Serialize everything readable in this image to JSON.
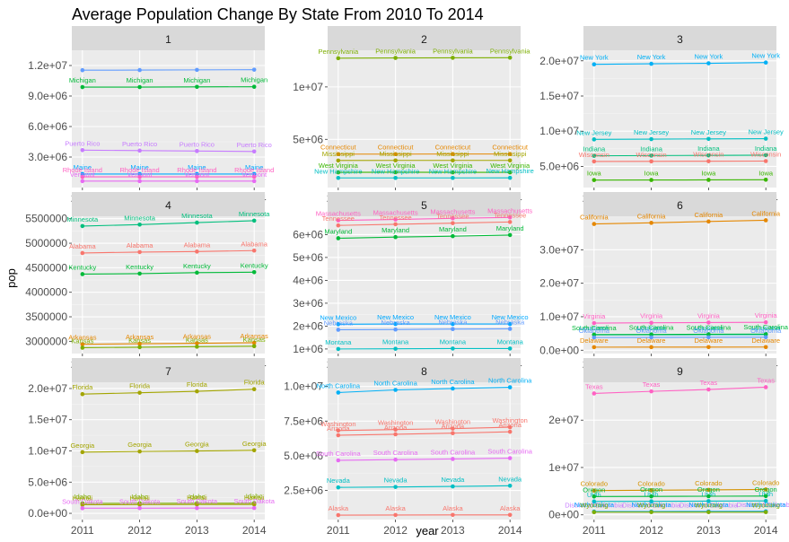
{
  "chart_data": {
    "type": "line",
    "title": "Average Population Change By State From 2010 To 2014",
    "xlabel": "year",
    "ylabel": "pop",
    "x": [
      2011,
      2012,
      2013,
      2014
    ],
    "grid": true,
    "panels": [
      {
        "facet": "1",
        "ylim": [
          0,
          13500000
        ],
        "yticks": [
          3000000,
          6000000,
          9000000,
          12000000
        ],
        "ytick_labels": [
          "3.0e+06",
          "6.0e+06",
          "9.0e+06",
          "1.2e+07"
        ],
        "series": [
          {
            "name": "",
            "color": "#619cff",
            "values": [
              11540000,
              11550000,
              11570000,
              11590000
            ]
          },
          {
            "name": "Michigan",
            "color": "#00ba38",
            "values": [
              9880000,
              9880000,
              9900000,
              9910000
            ]
          },
          {
            "name": "Puerto Rico",
            "color": "#c77cff",
            "values": [
              3680000,
              3630000,
              3590000,
              3550000
            ]
          },
          {
            "name": "Maine",
            "color": "#00a9ff",
            "values": [
              1330000,
              1330000,
              1330000,
              1330000
            ]
          },
          {
            "name": "Rhode Island",
            "color": "#ff61c3",
            "values": [
              1050000,
              1050000,
              1050000,
              1060000
            ]
          },
          {
            "name": "Vermont",
            "color": "#e76bf3",
            "values": [
              630000,
              630000,
              630000,
              630000
            ]
          }
        ]
      },
      {
        "facet": "2",
        "ylim": [
          400000,
          13500000
        ],
        "yticks": [
          5000000,
          10000000
        ],
        "ytick_labels": [
          "5e+06",
          "1e+07"
        ],
        "series": [
          {
            "name": "Pennsylvania",
            "color": "#7cae00",
            "values": [
              12740000,
              12770000,
              12780000,
              12790000
            ]
          },
          {
            "name": "Connecticut",
            "color": "#e58700",
            "values": [
              3590000,
              3590000,
              3600000,
              3600000
            ]
          },
          {
            "name": "Mississippi",
            "color": "#a3a500",
            "values": [
              2980000,
              2990000,
              2990000,
              2990000
            ]
          },
          {
            "name": "West Virginia",
            "color": "#39b600",
            "values": [
              1850000,
              1860000,
              1850000,
              1850000
            ]
          },
          {
            "name": "New Hampshire",
            "color": "#00bfc4",
            "values": [
              1320000,
              1320000,
              1320000,
              1330000
            ]
          }
        ]
      },
      {
        "facet": "3",
        "ylim": [
          2000000,
          21500000
        ],
        "yticks": [
          5000000,
          10000000,
          15000000,
          20000000
        ],
        "ytick_labels": [
          "5.0e+06",
          "1.0e+07",
          "1.5e+07",
          "2.0e+07"
        ],
        "series": [
          {
            "name": "New York",
            "color": "#00b0f6",
            "values": [
              19500000,
              19580000,
              19650000,
              19750000
            ]
          },
          {
            "name": "New Jersey",
            "color": "#00bfc4",
            "values": [
              8840000,
              8880000,
              8910000,
              8940000
            ]
          },
          {
            "name": "Indiana",
            "color": "#00bf7d",
            "values": [
              6510000,
              6540000,
              6570000,
              6600000
            ]
          },
          {
            "name": "Wisconsin",
            "color": "#f8766d",
            "values": [
              5710000,
              5720000,
              5740000,
              5760000
            ]
          },
          {
            "name": "Iowa",
            "color": "#39b600",
            "values": [
              3060000,
              3070000,
              3090000,
              3110000
            ]
          }
        ]
      },
      {
        "facet": "4",
        "ylim": [
          2750000,
          5550000
        ],
        "yticks": [
          3000000,
          3500000,
          4000000,
          4500000,
          5000000,
          5500000
        ],
        "ytick_labels": [
          "3000000",
          "3500000",
          "4000000",
          "4500000",
          "5000000",
          "5500000"
        ],
        "series": [
          {
            "name": "Minnesota",
            "color": "#00bf7d",
            "values": [
              5350000,
              5380000,
              5420000,
              5460000
            ]
          },
          {
            "name": "Alabama",
            "color": "#f8766d",
            "values": [
              4800000,
              4820000,
              4830000,
              4850000
            ]
          },
          {
            "name": "Kentucky",
            "color": "#00ba38",
            "values": [
              4370000,
              4380000,
              4400000,
              4410000
            ]
          },
          {
            "name": "Arkansas",
            "color": "#e58700",
            "values": [
              2940000,
              2950000,
              2960000,
              2970000
            ]
          },
          {
            "name": "Kansas",
            "color": "#7cae00",
            "values": [
              2870000,
              2880000,
              2890000,
              2900000
            ]
          }
        ]
      },
      {
        "facet": "5",
        "ylim": [
          800000,
          6800000
        ],
        "yticks": [
          1000000,
          2000000,
          3000000,
          4000000,
          5000000,
          6000000
        ],
        "ytick_labels": [
          "1e+06",
          "2e+06",
          "3e+06",
          "4e+06",
          "5e+06",
          "6e+06"
        ],
        "series": [
          {
            "name": "Massachusetts",
            "color": "#ff61c3",
            "values": [
              6620000,
              6660000,
              6710000,
              6750000
            ]
          },
          {
            "name": "Tennessee",
            "color": "#f8766d",
            "values": [
              6400000,
              6450000,
              6500000,
              6550000
            ]
          },
          {
            "name": "Maryland",
            "color": "#00ba38",
            "values": [
              5840000,
              5890000,
              5930000,
              5980000
            ]
          },
          {
            "name": "New Mexico",
            "color": "#00a9ff",
            "values": [
              2080000,
              2090000,
              2090000,
              2090000
            ]
          },
          {
            "name": "Nebraska",
            "color": "#619cff",
            "values": [
              1840000,
              1850000,
              1870000,
              1880000
            ]
          },
          {
            "name": "Montana",
            "color": "#00bfc4",
            "values": [
              1000000,
              1010000,
              1020000,
              1020000
            ]
          }
        ]
      },
      {
        "facet": "6",
        "ylim": [
          -1000000,
          40000000
        ],
        "yticks": [
          0,
          10000000,
          20000000,
          30000000
        ],
        "ytick_labels": [
          "0.0e+00",
          "1.0e+07",
          "2.0e+07",
          "3.0e+07"
        ],
        "series": [
          {
            "name": "California",
            "color": "#e58700",
            "values": [
              37700000,
              38040000,
              38430000,
              38800000
            ]
          },
          {
            "name": "Virginia",
            "color": "#ff61c3",
            "values": [
              8100000,
              8190000,
              8270000,
              8330000
            ]
          },
          {
            "name": "Louisiana",
            "color": "#00bfc4",
            "values": [
              4580000,
              4600000,
              4630000,
              4650000
            ]
          },
          {
            "name": "South Carolina",
            "color": "#00ba38",
            "values": [
              4670000,
              4720000,
              4770000,
              4830000
            ]
          },
          {
            "name": "Oklahoma",
            "color": "#619cff",
            "values": [
              3790000,
              3810000,
              3850000,
              3880000
            ]
          },
          {
            "name": "Delaware",
            "color": "#e58700",
            "values": [
              910000,
              920000,
              930000,
              940000
            ]
          }
        ]
      },
      {
        "facet": "7",
        "ylim": [
          -1000000,
          21000000
        ],
        "yticks": [
          0,
          5000000,
          10000000,
          15000000,
          20000000
        ],
        "ytick_labels": [
          "0.0e+00",
          "5.0e+06",
          "1.0e+07",
          "1.5e+07",
          "2.0e+07"
        ],
        "series": [
          {
            "name": "Florida",
            "color": "#a3a500",
            "values": [
              19100000,
              19320000,
              19550000,
              19890000
            ]
          },
          {
            "name": "Georgia",
            "color": "#a3a500",
            "values": [
              9810000,
              9910000,
              9990000,
              10100000
            ]
          },
          {
            "name": "Idaho",
            "color": "#7cae00",
            "values": [
              1590000,
              1600000,
              1610000,
              1630000
            ]
          },
          {
            "name": "Hawaii",
            "color": "#a3a500",
            "values": [
              1380000,
              1390000,
              1410000,
              1420000
            ]
          },
          {
            "name": "South Dakota",
            "color": "#e76bf3",
            "values": [
              820000,
              830000,
              840000,
              850000
            ]
          }
        ]
      },
      {
        "facet": "8",
        "ylim": [
          400000,
          10300000
        ],
        "yticks": [
          2500000,
          5000000,
          7500000,
          10000000
        ],
        "ytick_labels": [
          "2.5e+06",
          "5.0e+06",
          "7.5e+06",
          "1.0e+07"
        ],
        "series": [
          {
            "name": "North Carolina",
            "color": "#00b0f6",
            "values": [
              9560000,
              9750000,
              9850000,
              9940000
            ]
          },
          {
            "name": "Washington",
            "color": "#f8766d",
            "values": [
              6820000,
              6890000,
              6960000,
              7060000
            ]
          },
          {
            "name": "Arizona",
            "color": "#f8766d",
            "values": [
              6480000,
              6550000,
              6630000,
              6730000
            ]
          },
          {
            "name": "South Carolina",
            "color": "#e76bf3",
            "values": [
              4670000,
              4720000,
              4770000,
              4830000
            ]
          },
          {
            "name": "Nevada",
            "color": "#00bfc4",
            "values": [
              2720000,
              2750000,
              2790000,
              2840000
            ]
          },
          {
            "name": "Alaska",
            "color": "#f8766d",
            "values": [
              720000,
              730000,
              737000,
              737000
            ]
          }
        ]
      },
      {
        "facet": "9",
        "ylim": [
          -1000000,
          28000000
        ],
        "yticks": [
          0,
          10000000,
          20000000
        ],
        "ytick_labels": [
          "0e+00",
          "1e+07",
          "2e+07"
        ],
        "series": [
          {
            "name": "Texas",
            "color": "#ff61c3",
            "values": [
              25640000,
              26080000,
              26480000,
              26960000
            ]
          },
          {
            "name": "Colorado",
            "color": "#d39200",
            "values": [
              5120000,
              5190000,
              5270000,
              5360000
            ]
          },
          {
            "name": "Utah",
            "color": "#00bfc4",
            "values": [
              2820000,
              2850000,
              2900000,
              2940000
            ]
          },
          {
            "name": "Oregon",
            "color": "#00ba38",
            "values": [
              3870000,
              3900000,
              3930000,
              3970000
            ]
          },
          {
            "name": "District of Columbia",
            "color": "#c77cff",
            "values": [
              620000,
              630000,
              650000,
              660000
            ]
          },
          {
            "name": "North Dakota",
            "color": "#00a9ff",
            "values": [
              690000,
              700000,
              720000,
              740000
            ]
          },
          {
            "name": "Wyoming",
            "color": "#7cae00",
            "values": [
              570000,
              580000,
              580000,
              580000
            ]
          }
        ]
      }
    ]
  }
}
